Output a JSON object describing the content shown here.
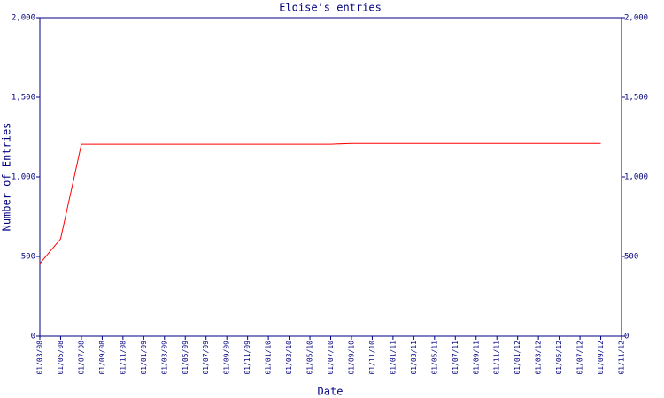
{
  "chart_data": {
    "type": "line",
    "title": "Eloise's entries",
    "x_label": "Date",
    "y_label": "Number of Entries",
    "categories": [
      "01/03/08",
      "01/05/08",
      "01/07/08",
      "01/09/08",
      "01/11/08",
      "01/01/09",
      "01/03/09",
      "01/05/09",
      "01/07/09",
      "01/09/09",
      "01/11/09",
      "01/01/10",
      "01/03/10",
      "01/05/10",
      "01/07/10",
      "01/09/10",
      "01/11/10",
      "01/01/11",
      "01/03/11",
      "01/05/11",
      "01/07/11",
      "01/09/11",
      "01/11/11",
      "01/01/12",
      "01/03/12",
      "01/05/12",
      "01/07/12",
      "01/09/12",
      "01/11/12"
    ],
    "series": [
      {
        "name": "Entries",
        "color": "#ff0000",
        "values": [
          455,
          611,
          1205,
          1205,
          1205,
          1205,
          1205,
          1205,
          1205,
          1205,
          1205,
          1205,
          1205,
          1205,
          1205,
          1210,
          1210,
          1210,
          1210,
          1210,
          1210,
          1210,
          1210,
          1210,
          1210,
          1210,
          1210,
          1210,
          null
        ]
      }
    ],
    "ylim": [
      0,
      2000
    ],
    "yticks": [
      0,
      500,
      {
        "value": 1000,
        "label": "1,000"
      },
      {
        "value": 1500,
        "label": "1,500"
      },
      {
        "value": 2000,
        "label": "2,000"
      }
    ],
    "axis_color": "#000080"
  }
}
